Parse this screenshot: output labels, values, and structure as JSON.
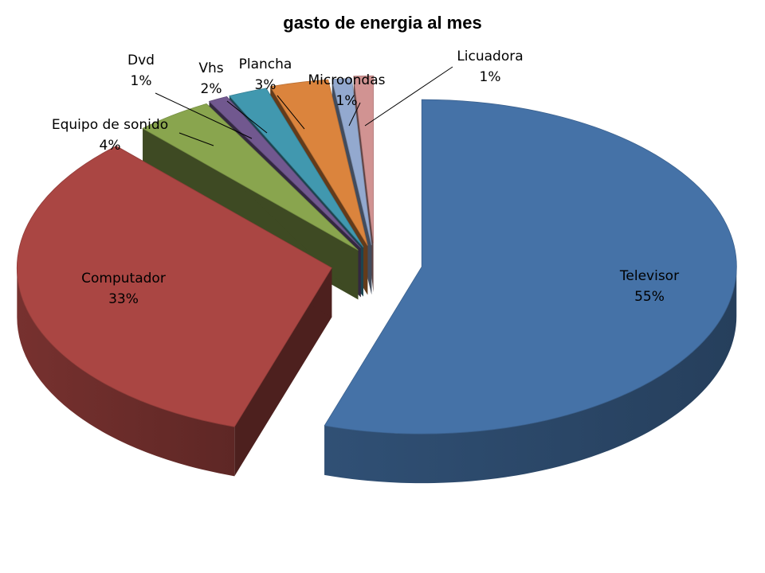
{
  "chart_data": {
    "type": "pie",
    "title": "gasto de energia al mes",
    "style": "3d-exploded",
    "legend": "none",
    "slices": [
      {
        "label": "Televisor",
        "value": 55,
        "value_label": "55%",
        "color": "#4572A7"
      },
      {
        "label": "Computador",
        "value": 33,
        "value_label": "33%",
        "color": "#AA4643"
      },
      {
        "label": "Equipo de sonido",
        "value": 4,
        "value_label": "4%",
        "color": "#89A54E"
      },
      {
        "label": "Dvd",
        "value": 1,
        "value_label": "1%",
        "color": "#71588F"
      },
      {
        "label": "Vhs",
        "value": 2,
        "value_label": "2%",
        "color": "#4198AF"
      },
      {
        "label": "Plancha",
        "value": 3,
        "value_label": "3%",
        "color": "#DB843D"
      },
      {
        "label": "Microondas",
        "value": 1,
        "value_label": "1%",
        "color": "#93A9CF"
      },
      {
        "label": "Licuadora",
        "value": 1,
        "value_label": "1%",
        "color": "#D19392"
      }
    ]
  }
}
